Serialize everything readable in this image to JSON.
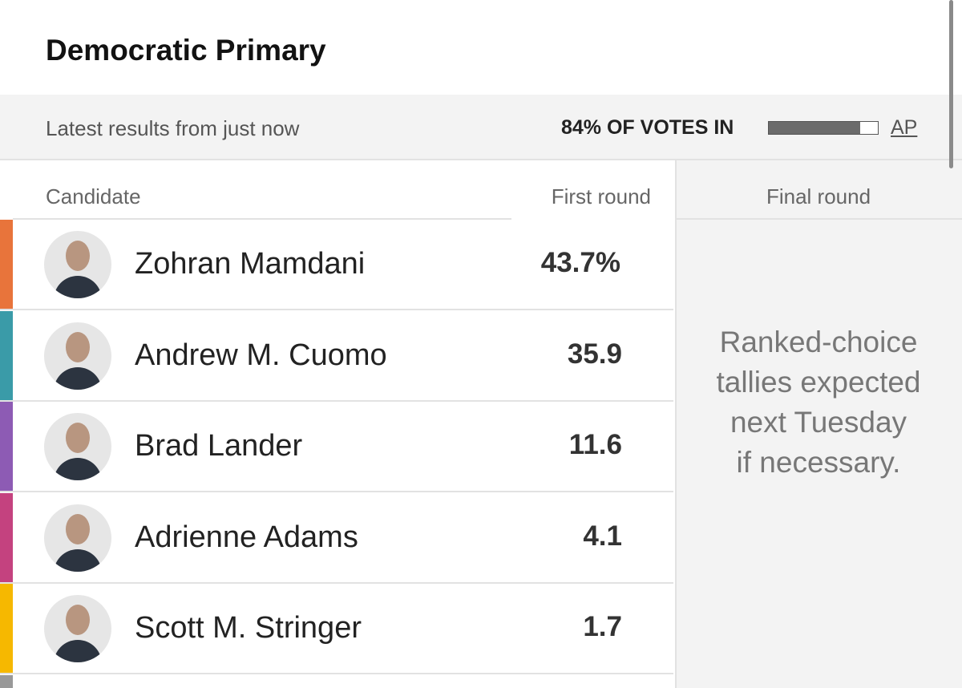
{
  "header": {
    "title": "Democratic Primary"
  },
  "status": {
    "updated": "Latest results from just now",
    "votes_in": {
      "value": 84,
      "label": "84% OF VOTES IN"
    },
    "source": "AP"
  },
  "table": {
    "columns": [
      "Candidate",
      "First round",
      "Final round"
    ],
    "rows": [
      {
        "name": "Zohran Mamdani",
        "first_round": "43.7%",
        "color": "#e8743b"
      },
      {
        "name": "Andrew M. Cuomo",
        "first_round": "35.9",
        "color": "#3a9ba8"
      },
      {
        "name": "Brad Lander",
        "first_round": "11.6",
        "color": "#8d5bb4"
      },
      {
        "name": "Adrienne Adams",
        "first_round": "4.1",
        "color": "#c4427f"
      },
      {
        "name": "Scott M. Stringer",
        "first_round": "1.7",
        "color": "#f6b800"
      }
    ],
    "final_round_note": [
      "Ranked-choice",
      "tallies expected",
      "next Tuesday",
      "if necessary."
    ]
  }
}
